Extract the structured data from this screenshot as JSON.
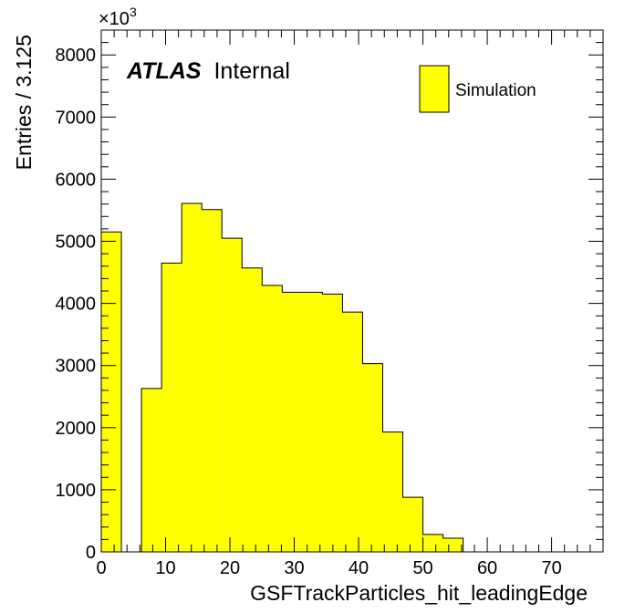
{
  "chart_data": {
    "type": "bar",
    "style": "histogram",
    "xlabel": "GSFTrackParticles_hit_leadingEdge",
    "ylabel": "Entries / 3.125",
    "y_multiplier_prefix": "×10",
    "y_multiplier_exponent": "3",
    "xlim": [
      0,
      78
    ],
    "ylim": [
      0,
      8400
    ],
    "x_ticks": [
      0,
      10,
      20,
      30,
      40,
      50,
      60,
      70
    ],
    "y_ticks": [
      0,
      1000,
      2000,
      3000,
      4000,
      5000,
      6000,
      7000,
      8000
    ],
    "bin_width": 3.125,
    "bin_edges": [
      0,
      3.125,
      6.25,
      9.375,
      12.5,
      15.625,
      18.75,
      21.875,
      25.0,
      28.125,
      31.25,
      34.375,
      37.5,
      40.625,
      43.75,
      46.875,
      50.0,
      53.125,
      56.25,
      59.375,
      62.5,
      65.625,
      68.75,
      71.875,
      75.0,
      78.125
    ],
    "values": [
      5150,
      0,
      2630,
      4650,
      5610,
      5510,
      5050,
      4570,
      4290,
      4180,
      4180,
      4150,
      3860,
      3030,
      1930,
      880,
      280,
      220,
      0,
      0,
      0,
      0,
      0,
      0,
      0
    ],
    "series": [
      {
        "name": "Simulation",
        "color": "#ffff00",
        "edge_color": "#000000"
      }
    ],
    "annotation_bold": "ATLAS",
    "annotation_text": "Internal",
    "legend_position": "top-right",
    "grid": false
  }
}
